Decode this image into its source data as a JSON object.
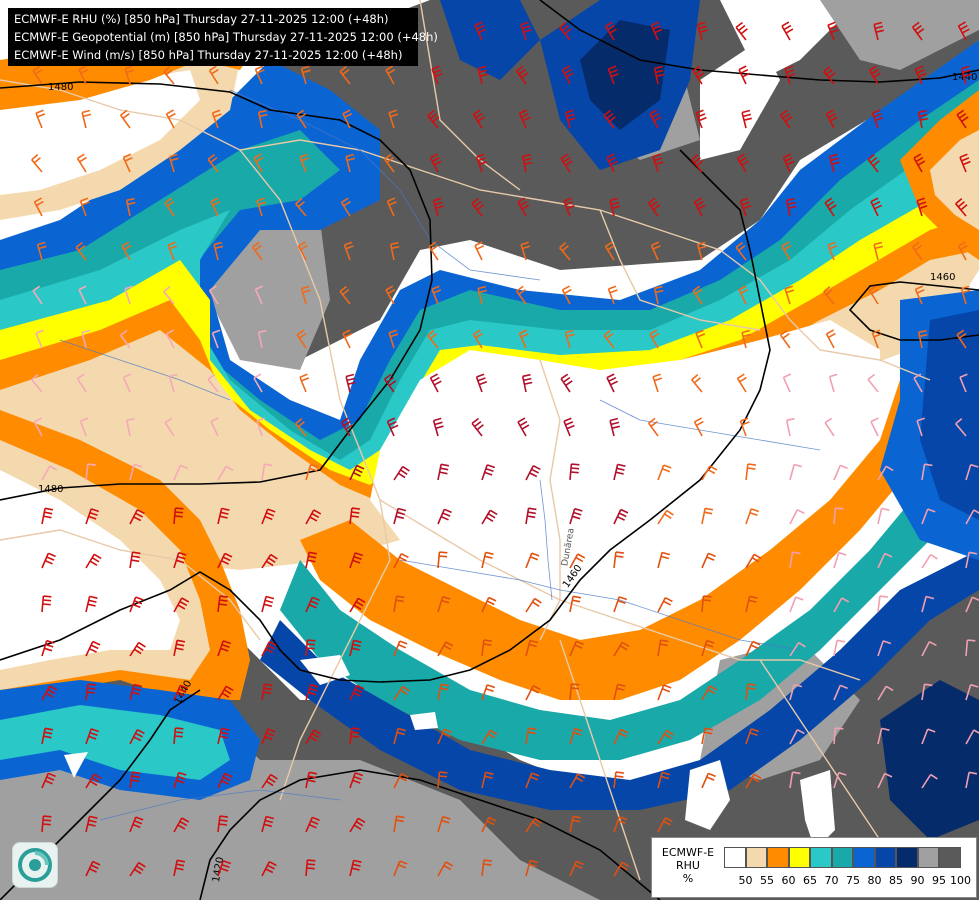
{
  "title_lines": [
    "ECMWF-E RHU (%) [850 hPa] Thursday 27-11-2025 12:00 (+48h)",
    "ECMWF-E Geopotential (m) [850 hPa] Thursday 27-11-2025 12:00 (+48h)",
    "ECMWF-E Wind (m/s) [850 hPa] Thursday 27-11-2025 12:00 (+48h)"
  ],
  "contour_labels": [
    "1480",
    "1440",
    "1460",
    "1480",
    "1460",
    "1440",
    "1420"
  ],
  "river_label": "Dunărea",
  "legend": {
    "name_line1": "ECMWF-E",
    "name_line2": "RHU",
    "unit": "%",
    "ticks": [
      "50",
      "55",
      "60",
      "65",
      "70",
      "75",
      "80",
      "85",
      "90",
      "95",
      "100"
    ],
    "colors": [
      "#ffffff",
      "#f5d9ae",
      "#ff8c00",
      "#ffff00",
      "#2bc8c8",
      "#1aa9a9",
      "#0a64d2",
      "#0646a8",
      "#062b6b",
      "#a0a0a0",
      "#5a5a5a"
    ]
  },
  "field_colors": {
    "rhu_lt50": "#ffffff",
    "rhu_55": "#f5d9ae",
    "rhu_60": "#ff8c00",
    "rhu_65": "#ffff00",
    "rhu_70": "#2bc8c8",
    "rhu_75": "#1aa9a9",
    "rhu_80": "#0a64d2",
    "rhu_85": "#0646a8",
    "rhu_90": "#062b6b",
    "rhu_95": "#a0a0a0",
    "rhu_100": "#5a5a5a",
    "border": "#e8c9a8",
    "river": "#4a78c8",
    "isohypse": "#000000"
  },
  "logo_icon": "meteo-logo-icon"
}
